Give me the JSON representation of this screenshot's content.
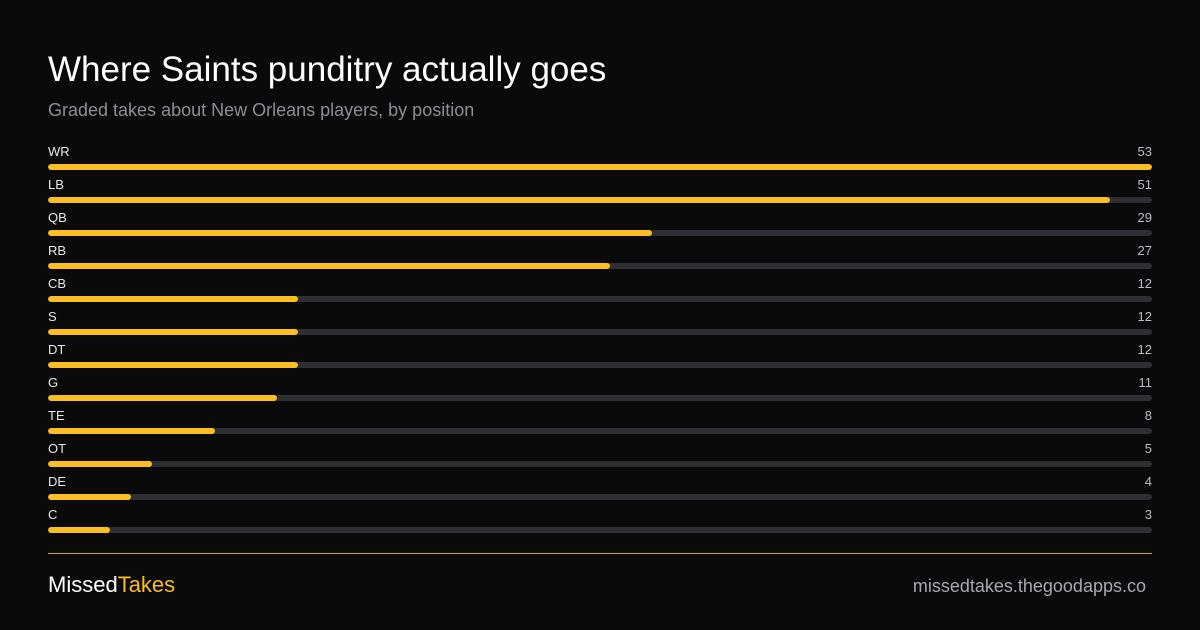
{
  "header": {
    "title": "Where Saints punditry actually goes",
    "subtitle": "Graded takes about New Orleans players, by position"
  },
  "colors": {
    "background": "#0a0a0a",
    "bar_fill": "#fbbf24",
    "bar_track": "#2e2e33",
    "accent": "#fbbf24"
  },
  "chart_data": {
    "type": "bar",
    "orientation": "horizontal",
    "title": "Where Saints punditry actually goes",
    "subtitle": "Graded takes about New Orleans players, by position",
    "categories": [
      "WR",
      "LB",
      "QB",
      "RB",
      "CB",
      "S",
      "DT",
      "G",
      "TE",
      "OT",
      "DE",
      "C"
    ],
    "values": [
      53,
      51,
      29,
      27,
      12,
      12,
      12,
      11,
      8,
      5,
      4,
      3
    ],
    "xlim": [
      0,
      53
    ],
    "grid": false,
    "legend": "none"
  },
  "footer": {
    "brand_part1": "Missed",
    "brand_part2": "Takes",
    "site": "missedtakes.thegoodapps.co"
  }
}
